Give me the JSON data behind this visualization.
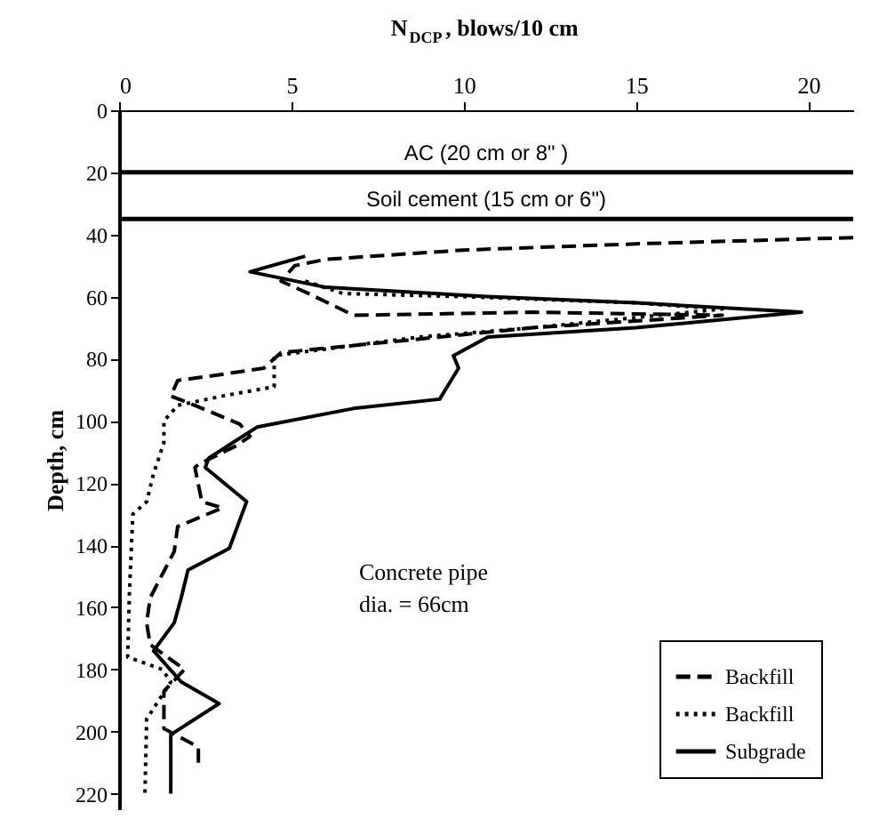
{
  "chart_data": {
    "type": "line",
    "xlabel": "N$_{DCP}$, blows/10 cm",
    "ylabel": "Depth, cm",
    "xlim": [
      0,
      21.3
    ],
    "xticks": [
      0,
      5,
      10,
      15,
      20
    ],
    "ylim": [
      225,
      0
    ],
    "yticks": [
      0,
      20,
      40,
      60,
      80,
      100,
      120,
      140,
      160,
      180,
      200,
      220
    ],
    "grid": false,
    "legend": "bottom right",
    "marker": "none",
    "ref_lines": [
      {
        "axis": "y",
        "value": 20,
        "label": "AC (20 cm or 8\" )"
      },
      {
        "axis": "y",
        "value": 35,
        "label": "Soil cement (15 cm or 6\")"
      }
    ],
    "annotations": [
      "Concrete pipe\ndia. = 66cm"
    ],
    "series": [
      {
        "name": "Backfill",
        "color": "#000000",
        "line_style": "dashed",
        "x": [
          21.3,
          15,
          10,
          6,
          5.1,
          4.7,
          5.5,
          6.8,
          12,
          17.5,
          12,
          9.3,
          4.7,
          4.2,
          3.0,
          1.7,
          1.5,
          2.2,
          3.5,
          3.8,
          3.4,
          2.3,
          2.2,
          2.4,
          3.0,
          1.7,
          1.6,
          0.9,
          0.8,
          0.9,
          1.9,
          1.3,
          1.3,
          2.3,
          2.3
        ],
        "values": [
          41,
          43,
          45,
          48,
          50,
          55,
          59,
          66,
          65,
          66,
          70,
          73,
          78,
          83,
          85,
          87,
          92,
          95,
          101,
          105,
          108,
          114,
          115,
          126,
          128,
          134,
          142,
          157,
          165,
          172,
          180,
          187,
          199,
          205,
          211
        ]
      },
      {
        "name": "Backfill",
        "color": "#000000",
        "line_style": "dotted",
        "x": [
          5.4,
          6.5,
          10,
          15,
          17.5,
          12,
          8.7,
          4.5,
          4.5,
          3.0,
          1.7,
          1.3,
          1.3,
          1.0,
          0.8,
          0.4,
          0.3,
          0.25,
          1.25,
          1.5,
          0.8,
          0.75
        ],
        "values": [
          55,
          59,
          60,
          62,
          64,
          70,
          73,
          79,
          89,
          92,
          95,
          100,
          107,
          117,
          126,
          130,
          155,
          176,
          180,
          184,
          196,
          220
        ]
      },
      {
        "name": "Subgrade",
        "color": "#000000",
        "line_style": "solid",
        "x": [
          5.4,
          3.8,
          6,
          10.7,
          15,
          19.8,
          15,
          10.7,
          9.7,
          9.85,
          9.3,
          6.8,
          4.0,
          3.3,
          2.6,
          2.5,
          3.7,
          3.2,
          2.0,
          1.8,
          1.6,
          1.0,
          1.8,
          2.9,
          1.5,
          1.5,
          1.5
        ],
        "values": [
          47,
          52,
          57,
          60,
          62,
          65,
          70,
          73,
          79,
          83,
          93,
          96,
          102,
          107,
          112,
          115,
          126,
          141,
          148,
          157,
          165,
          174,
          184,
          191,
          201,
          206,
          220
        ]
      }
    ]
  }
}
